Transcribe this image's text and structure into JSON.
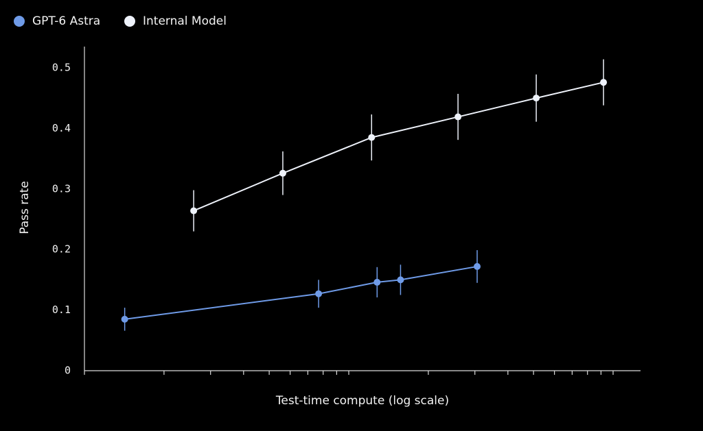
{
  "chart_data": {
    "type": "line",
    "xlabel": "Test-time compute (log scale)",
    "ylabel": "Pass rate",
    "xscale": "log",
    "xlim": [
      1,
      127
    ],
    "xticks": [
      1,
      2,
      3,
      4,
      5,
      6,
      7,
      8,
      9,
      10,
      20,
      30,
      40,
      50,
      60,
      70,
      80,
      90,
      100
    ],
    "ylim": [
      0,
      0.535
    ],
    "yticks": [
      0,
      0.1,
      0.2,
      0.3,
      0.4,
      0.5
    ],
    "series": [
      {
        "name": "GPT-6 Astra",
        "color": "#6f9be8",
        "x": [
          1.42,
          7.69,
          12.8,
          15.7,
          30.6
        ],
        "values": [
          0.085,
          0.127,
          0.146,
          0.15,
          0.172
        ],
        "errors": [
          0.019,
          0.023,
          0.025,
          0.025,
          0.027
        ]
      },
      {
        "name": "Internal Model",
        "color": "#eef2fa",
        "x": [
          2.59,
          5.63,
          12.2,
          25.9,
          51.2,
          92.0
        ],
        "values": [
          0.264,
          0.326,
          0.385,
          0.419,
          0.45,
          0.476
        ],
        "errors": [
          0.034,
          0.036,
          0.038,
          0.038,
          0.039,
          0.038
        ]
      }
    ]
  }
}
